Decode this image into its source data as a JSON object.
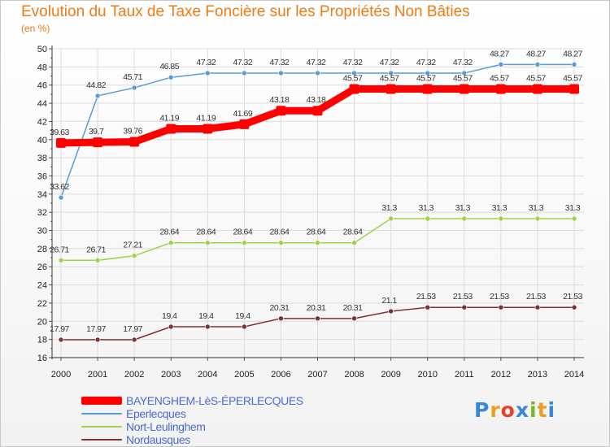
{
  "header": {
    "title": "Evolution du Taux de Taxe Foncière sur les Propriétés Non Bâties",
    "unit": "(en %)"
  },
  "brand": {
    "letters": [
      "P",
      "r",
      "o",
      "x",
      "i",
      "t",
      "i"
    ],
    "colors": [
      "#3a86d8",
      "#e8a020",
      "#e2432a",
      "#3a86d8",
      "#78b828",
      "#e8a020",
      "#3a86d8"
    ]
  },
  "chart_data": {
    "type": "line",
    "x": [
      "2000",
      "2001",
      "2002",
      "2003",
      "2004",
      "2005",
      "2006",
      "2007",
      "2008",
      "2009",
      "2010",
      "2011",
      "2012",
      "2013",
      "2014"
    ],
    "ylim": [
      16,
      50
    ],
    "yticks": [
      16,
      18,
      20,
      22,
      24,
      26,
      28,
      30,
      32,
      34,
      36,
      38,
      40,
      42,
      44,
      46,
      48,
      50
    ],
    "grid": true,
    "legend": "bottom-left",
    "series": [
      {
        "name": "BAYENGHEM-LèS-ÉPERLECQUES",
        "color": "#ff0000",
        "values": [
          39.63,
          39.7,
          39.76,
          41.19,
          41.19,
          41.69,
          43.18,
          43.18,
          45.57,
          45.57,
          45.57,
          45.57,
          45.57,
          45.57,
          45.57
        ],
        "labels": [
          "39.63",
          "39.7",
          "39.76",
          "41.19",
          "41.19",
          "41.69",
          "43.18",
          "43.18",
          "45.57",
          "45.57",
          "45.57",
          "45.57",
          "45.57",
          "45.57",
          "45.57"
        ]
      },
      {
        "name": "Eperlecques",
        "color": "#5b9ad5",
        "values": [
          33.62,
          44.82,
          45.71,
          46.85,
          47.32,
          47.32,
          47.32,
          47.32,
          47.32,
          47.32,
          47.32,
          47.32,
          48.27,
          48.27,
          48.27
        ],
        "labels": [
          "33.62",
          "44.82",
          "45.71",
          "46.85",
          "47.32",
          "47.32",
          "47.32",
          "47.32",
          "47.32",
          "47.32",
          "47.32",
          "47.32",
          "48.27",
          "48.27",
          "48.27"
        ]
      },
      {
        "name": "Nort-Leulinghem",
        "color": "#9bd34a",
        "values": [
          26.71,
          26.71,
          27.21,
          28.64,
          28.64,
          28.64,
          28.64,
          28.64,
          28.64,
          31.3,
          31.3,
          31.3,
          31.3,
          31.3,
          31.3
        ],
        "labels": [
          "26.71",
          "26.71",
          "27.21",
          "28.64",
          "28.64",
          "28.64",
          "28.64",
          "28.64",
          "28.64",
          "31.3",
          "31.3",
          "31.3",
          "31.3",
          "31.3",
          "31.3"
        ]
      },
      {
        "name": "Nordausques",
        "color": "#7a3232",
        "values": [
          17.97,
          17.97,
          17.97,
          19.4,
          19.4,
          19.4,
          20.31,
          20.31,
          20.31,
          21.1,
          21.53,
          21.53,
          21.53,
          21.53,
          21.53
        ],
        "labels": [
          "17.97",
          "17.97",
          "17.97",
          "19.4",
          "19.4",
          "19.4",
          "20.31",
          "20.31",
          "20.31",
          "21.1",
          "21.53",
          "21.53",
          "21.53",
          "21.53",
          "21.53"
        ]
      }
    ]
  }
}
